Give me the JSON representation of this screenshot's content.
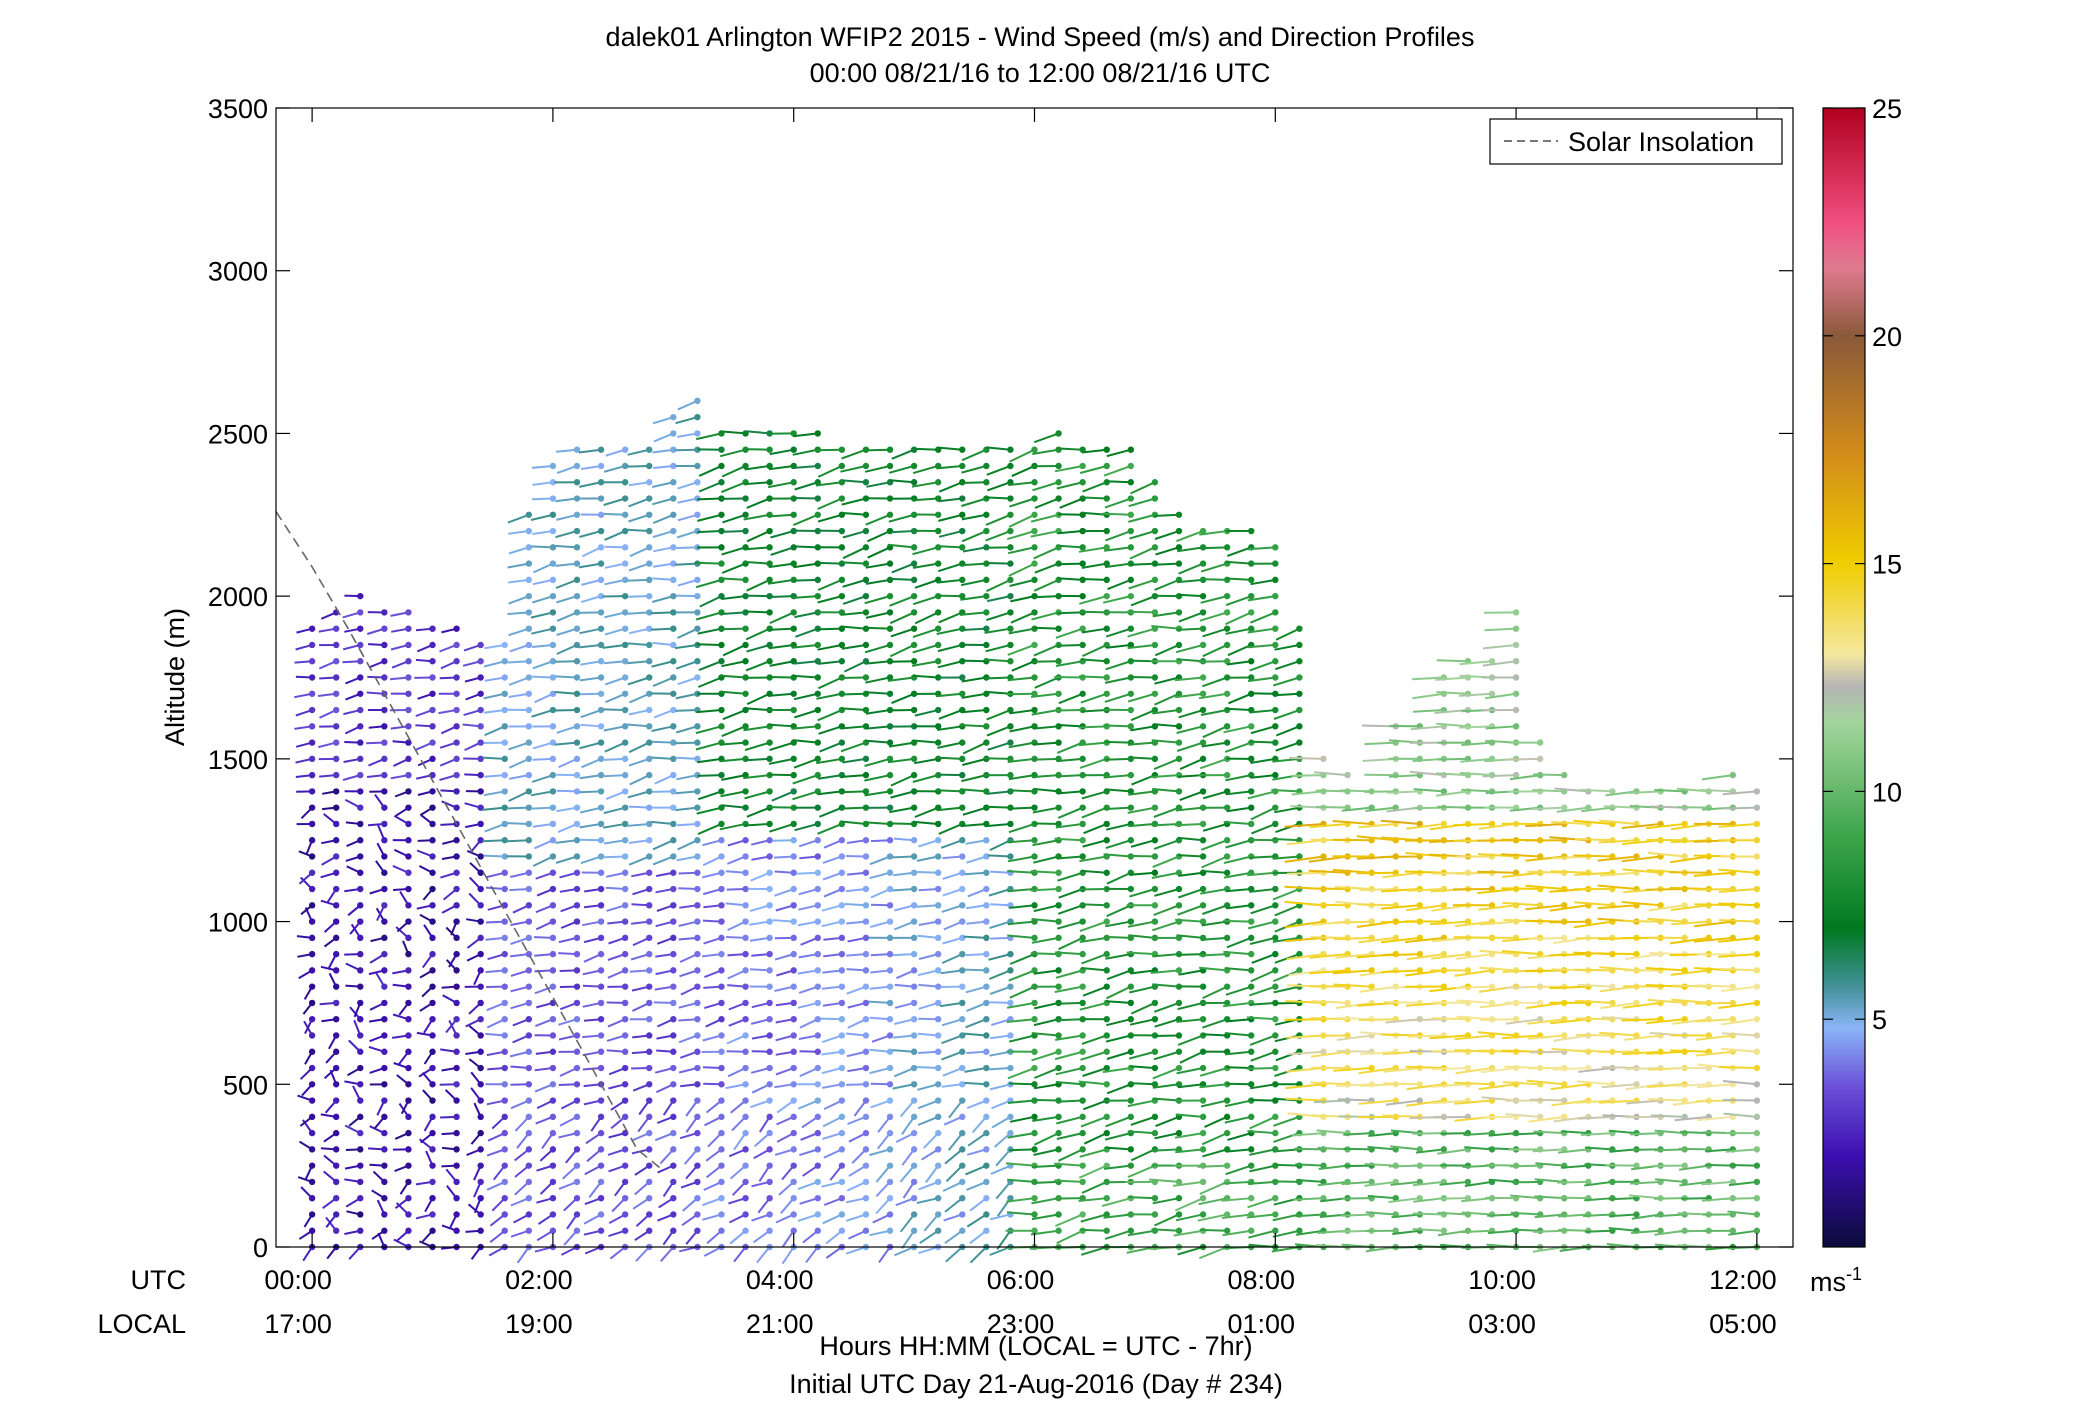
{
  "chart_data": {
    "type": "scatter",
    "title": "dalek01 Arlington WFIP2 2015 - Wind Speed (m/s) and Direction Profiles",
    "subtitle": "00:00 08/21/16 to 12:00 08/21/16  UTC",
    "ylabel": "Altitude (m)",
    "xlabel": "Hours HH:MM  (LOCAL = UTC - 7hr)",
    "xlabel2": "Initial UTC Day 21-Aug-2016 (Day # 234)",
    "row_label_utc": "UTC",
    "row_label_local": "LOCAL",
    "xlim": [
      -0.3,
      12.3
    ],
    "ylim": [
      0,
      3500
    ],
    "yticks": [
      0,
      500,
      1000,
      1500,
      2000,
      2500,
      3000,
      3500
    ],
    "xticks_utc": [
      "00:00",
      "02:00",
      "04:00",
      "06:00",
      "08:00",
      "10:00",
      "12:00"
    ],
    "xticks_local": [
      "17:00",
      "19:00",
      "21:00",
      "23:00",
      "01:00",
      "03:00",
      "05:00"
    ],
    "xtick_hours": [
      0,
      2,
      4,
      6,
      8,
      10,
      12
    ],
    "legend": {
      "label": "Solar Insolation",
      "placement": "top-right"
    },
    "solar_insolation_line": {
      "x": [
        -0.3,
        0.0,
        0.3,
        0.6,
        0.9,
        1.2,
        1.5,
        1.8,
        2.1,
        2.4,
        2.7,
        2.9
      ],
      "y": [
        2260,
        2090,
        1900,
        1700,
        1500,
        1300,
        1100,
        900,
        700,
        500,
        300,
        240
      ]
    },
    "colorbar": {
      "ticks": [
        5,
        10,
        15,
        20,
        25
      ],
      "range": [
        0,
        25
      ],
      "unit_label": "ms",
      "unit_exponent": "-1",
      "stops": [
        {
          "v": 0,
          "color": "#0b0b3a"
        },
        {
          "v": 2,
          "color": "#3b0fb0"
        },
        {
          "v": 3.5,
          "color": "#6a4fd8"
        },
        {
          "v": 4.8,
          "color": "#8ab4f8"
        },
        {
          "v": 5.8,
          "color": "#3d8f8f"
        },
        {
          "v": 7,
          "color": "#007a1f"
        },
        {
          "v": 9,
          "color": "#3ca54a"
        },
        {
          "v": 11.5,
          "color": "#a3d49c"
        },
        {
          "v": 12.3,
          "color": "#b4b4b4"
        },
        {
          "v": 13,
          "color": "#f4e8a0"
        },
        {
          "v": 15,
          "color": "#f0cd00"
        },
        {
          "v": 17.5,
          "color": "#d08a1a"
        },
        {
          "v": 20,
          "color": "#8a5a3a"
        },
        {
          "v": 21.5,
          "color": "#e07a90"
        },
        {
          "v": 22.5,
          "color": "#f04f7f"
        },
        {
          "v": 25,
          "color": "#b0001e"
        }
      ]
    },
    "profiles": {
      "time_hours": [
        0.0,
        0.2,
        0.4,
        0.6,
        0.8,
        1.0,
        1.2,
        1.4,
        1.6,
        1.8,
        2.0,
        2.2,
        2.4,
        2.6,
        2.8,
        3.0,
        3.2,
        3.4,
        3.6,
        3.8,
        4.0,
        4.2,
        4.4,
        4.6,
        4.8,
        5.0,
        5.2,
        5.4,
        5.6,
        5.8,
        6.0,
        6.2,
        6.4,
        6.6,
        6.8,
        7.0,
        7.2,
        7.4,
        7.6,
        7.8,
        8.0,
        8.2,
        8.4,
        8.6,
        8.8,
        9.0,
        9.2,
        9.4,
        9.6,
        9.8,
        10.0,
        10.2,
        10.4,
        10.6,
        10.8,
        11.0,
        11.2,
        11.4,
        11.6,
        11.8,
        12.0
      ],
      "top_altitude_m": [
        1900,
        1950,
        2000,
        1980,
        1960,
        1940,
        1900,
        1880,
        1850,
        2260,
        2400,
        2470,
        2470,
        2480,
        2490,
        2550,
        2620,
        2540,
        2520,
        2510,
        2500,
        2500,
        2490,
        2490,
        2470,
        2470,
        2480,
        2470,
        2480,
        2480,
        2490,
        2520,
        2470,
        2480,
        2470,
        2360,
        2260,
        2240,
        2220,
        2200,
        2190,
        1920,
        1500,
        1450,
        1440,
        1600,
        1620,
        1780,
        1800,
        1840,
        1980,
        1580,
        1450,
        1440,
        1430,
        1420,
        1400,
        1400,
        1400,
        1480,
        1420
      ],
      "gate_spacing_m": 50
    }
  }
}
